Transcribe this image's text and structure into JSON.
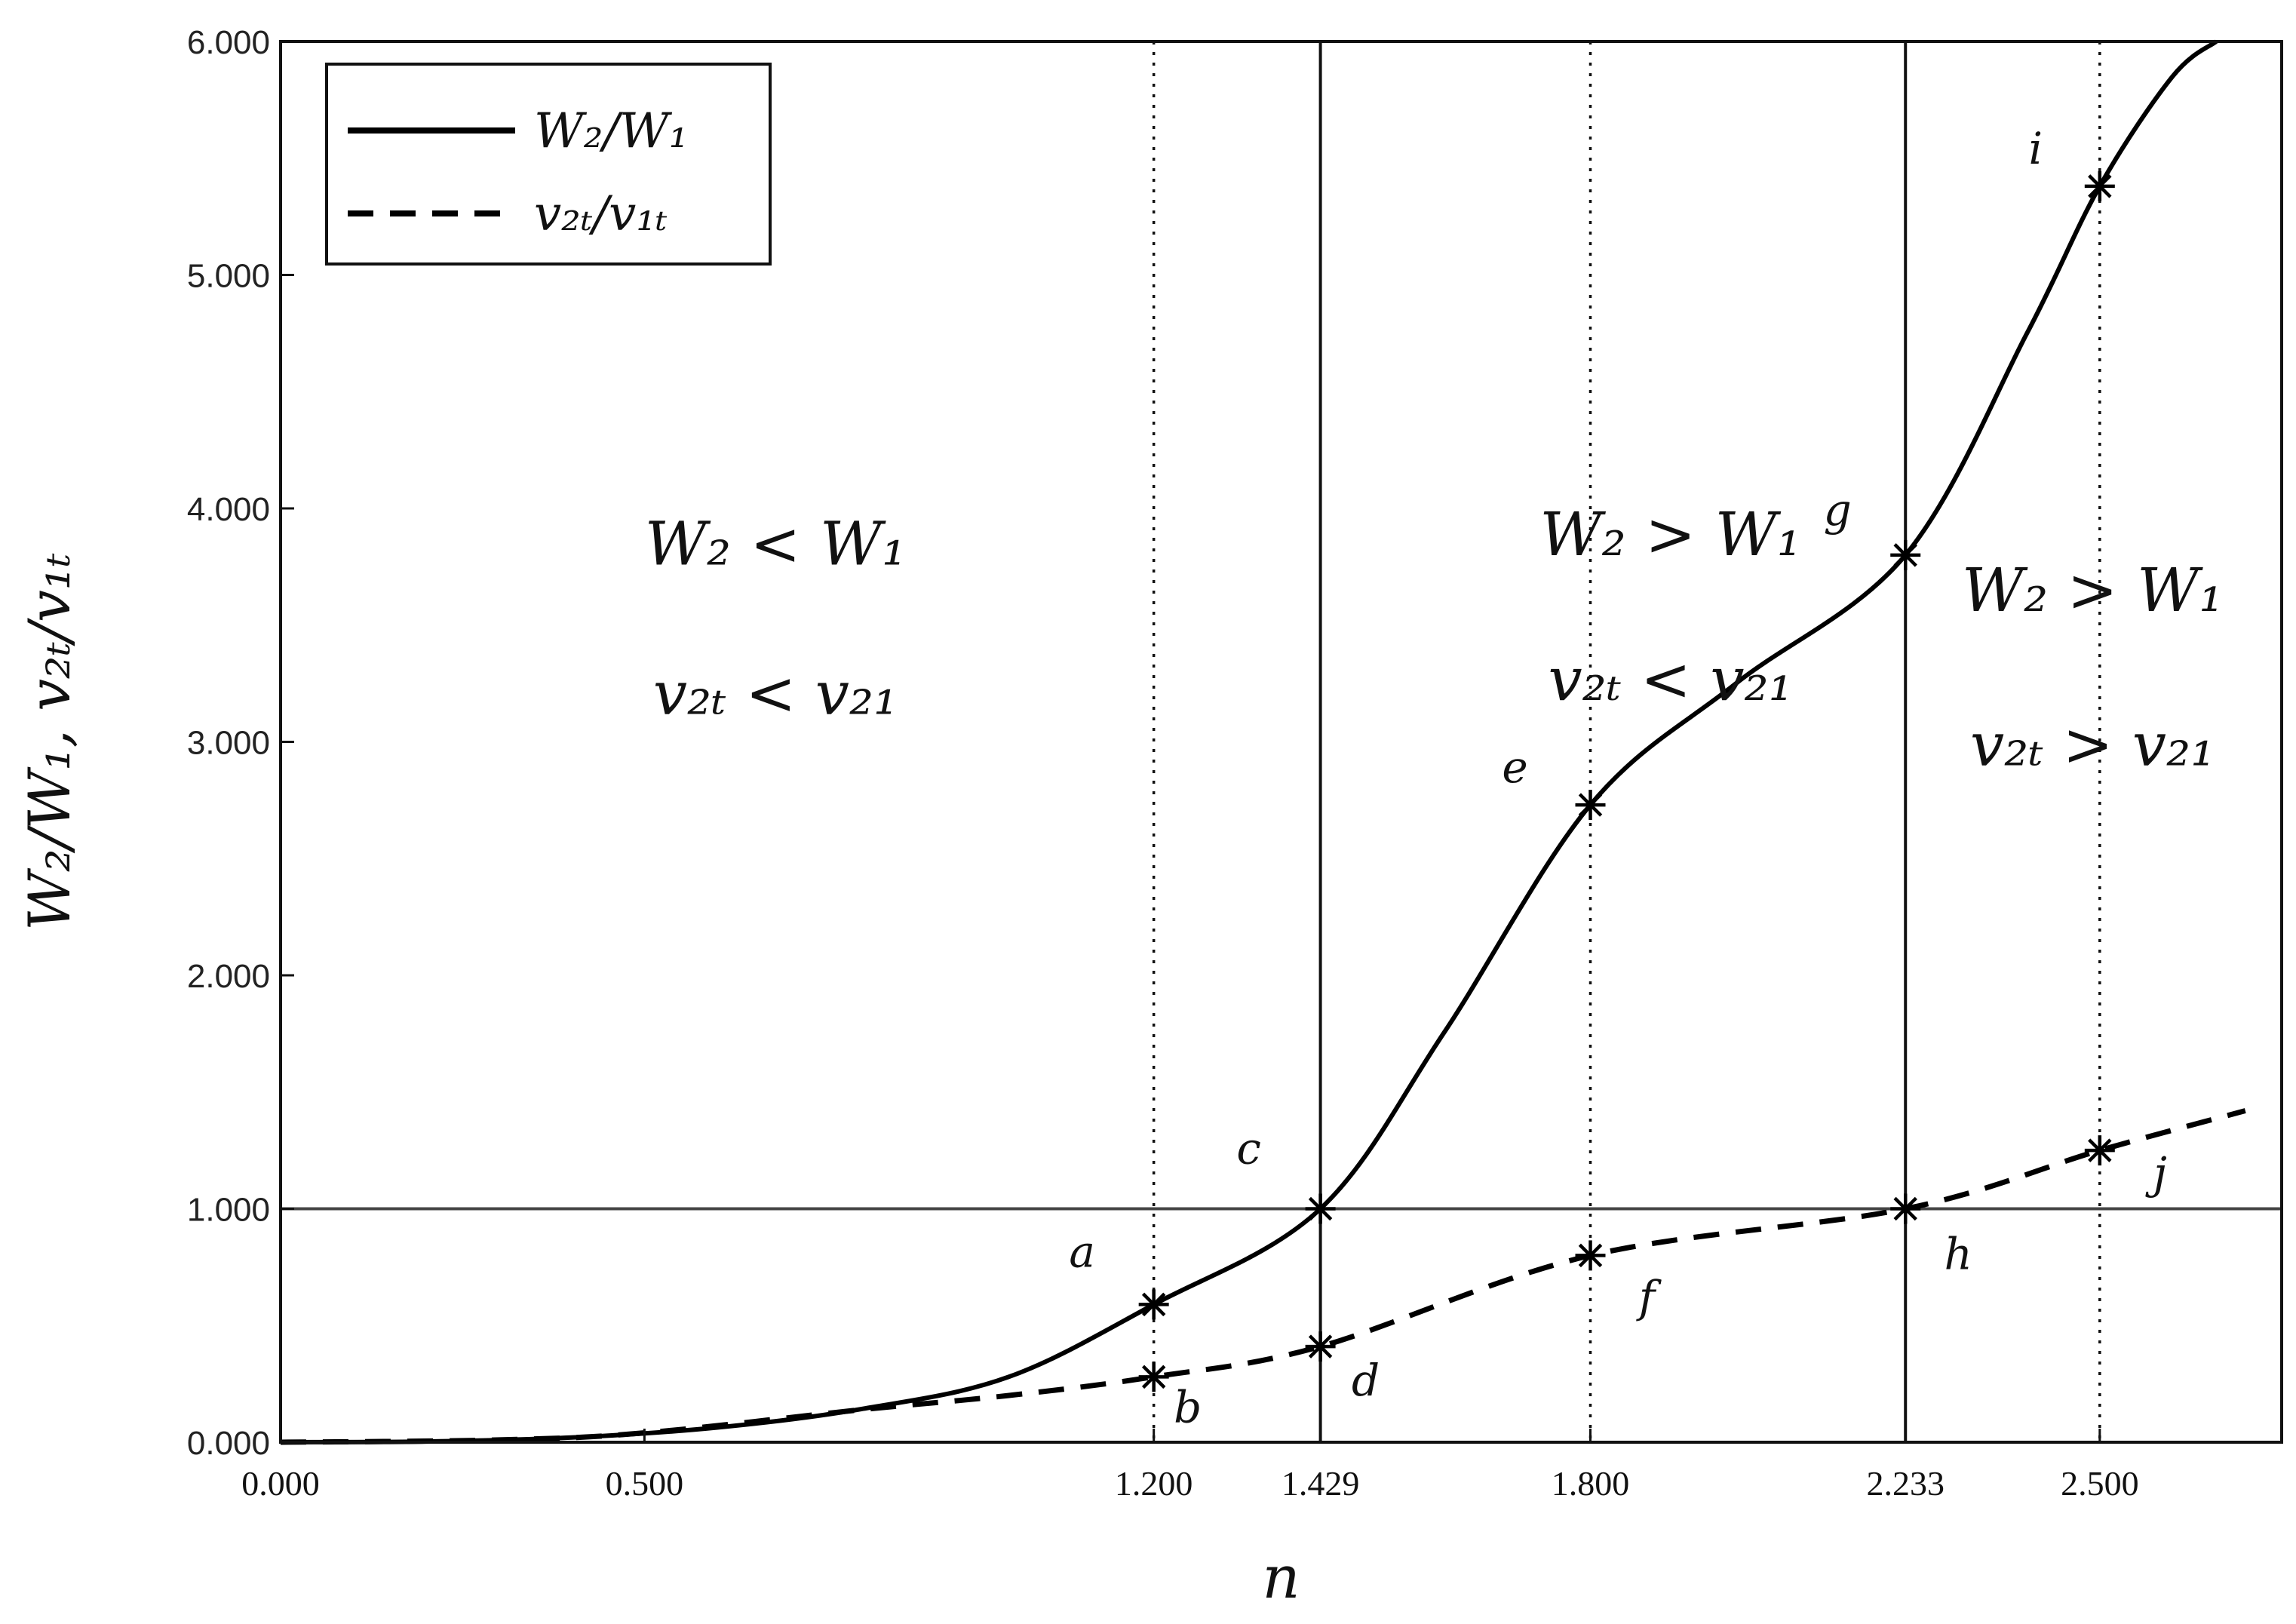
{
  "chart_data": {
    "type": "line",
    "xlabel": "n",
    "ylabel": "W₂/W₁, v₂ₜ/v₁ₜ",
    "xlim": [
      0,
      2.75
    ],
    "ylim": [
      0,
      6
    ],
    "grid": false,
    "legend_placement": "top-left",
    "x_tick_labels": [
      {
        "value": 0,
        "label": "0.000"
      },
      {
        "value": 0.5,
        "label": "0.500"
      },
      {
        "value": 1.2,
        "label": "1.200"
      },
      {
        "value": 1.429,
        "label": "1.429"
      },
      {
        "value": 1.8,
        "label": "1.800"
      },
      {
        "value": 2.233,
        "label": "2.233"
      },
      {
        "value": 2.5,
        "label": "2.500"
      }
    ],
    "y_tick_labels": [
      {
        "value": 0,
        "label": "0.000"
      },
      {
        "value": 1,
        "label": "1.000"
      },
      {
        "value": 2,
        "label": "2.000"
      },
      {
        "value": 3,
        "label": "3.000"
      },
      {
        "value": 4,
        "label": "4.000"
      },
      {
        "value": 5,
        "label": "5.000"
      },
      {
        "value": 6,
        "label": "6.000"
      }
    ],
    "series": [
      {
        "name": "W₂/W₁",
        "style": "solid",
        "x": [
          0,
          0.2,
          0.4,
          0.6,
          0.8,
          1.0,
          1.2,
          1.429,
          1.6,
          1.8,
          2.0,
          2.233,
          2.4,
          2.5,
          2.6,
          2.66
        ],
        "y": [
          0,
          0.003,
          0.02,
          0.063,
          0.143,
          0.279,
          0.59,
          1.0,
          1.76,
          2.73,
          3.25,
          3.8,
          4.75,
          5.38,
          5.85,
          6.0
        ]
      },
      {
        "name": "v₂ₜ/v₁ₜ",
        "style": "dashed",
        "x": [
          0,
          0.3,
          0.5,
          0.8,
          1.0,
          1.2,
          1.429,
          1.8,
          2.233,
          2.5,
          2.7
        ],
        "y": [
          0,
          0.01,
          0.04,
          0.14,
          0.2,
          0.28,
          0.41,
          0.8,
          1.0,
          1.25,
          1.42
        ]
      }
    ],
    "markers": [
      {
        "label": "a",
        "x": 1.2,
        "y": 0.59
      },
      {
        "label": "b",
        "x": 1.2,
        "y": 0.28
      },
      {
        "label": "c",
        "x": 1.429,
        "y": 1.0
      },
      {
        "label": "d",
        "x": 1.429,
        "y": 0.41
      },
      {
        "label": "e",
        "x": 1.8,
        "y": 2.73
      },
      {
        "label": "f",
        "x": 1.8,
        "y": 0.8
      },
      {
        "label": "g",
        "x": 2.233,
        "y": 3.8
      },
      {
        "label": "h",
        "x": 2.233,
        "y": 1.0
      },
      {
        "label": "i",
        "x": 2.5,
        "y": 5.38
      },
      {
        "label": "j",
        "x": 2.5,
        "y": 1.25
      }
    ],
    "vertical_lines": [
      {
        "x": 1.2,
        "style": "dotted"
      },
      {
        "x": 1.429,
        "style": "solid"
      },
      {
        "x": 1.8,
        "style": "dotted"
      },
      {
        "x": 2.233,
        "style": "solid"
      },
      {
        "x": 2.5,
        "style": "dotted"
      }
    ],
    "horizontal_lines": [
      {
        "y": 1.0,
        "style": "solid"
      }
    ],
    "annotations": [
      {
        "text": "W₂ < W₁",
        "x": 0.68,
        "y": 3.76
      },
      {
        "text": "v₂ₜ < v₂₁",
        "x": 0.68,
        "y": 3.12
      },
      {
        "text": "W₂ > W₁",
        "x": 1.91,
        "y": 3.8
      },
      {
        "text": "v₂ₜ < v₂₁",
        "x": 1.91,
        "y": 3.18
      },
      {
        "text": "W₂ > W₁",
        "x": 2.49,
        "y": 3.56
      },
      {
        "text": "v₂ₜ > v₂₁",
        "x": 2.49,
        "y": 2.9
      }
    ]
  }
}
